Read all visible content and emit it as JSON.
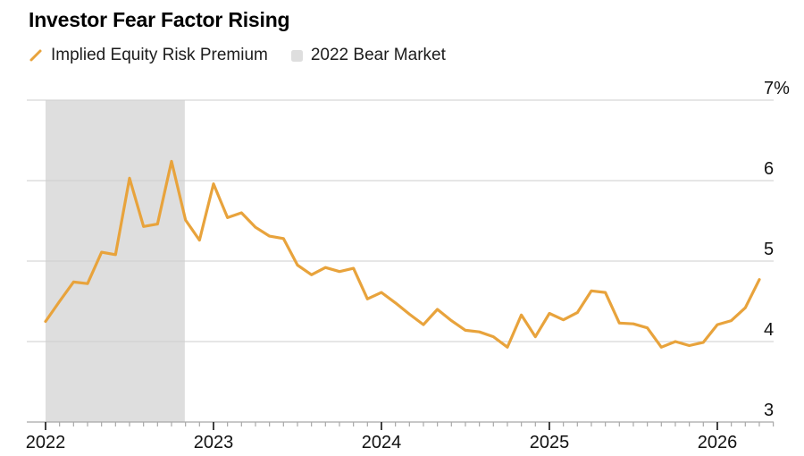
{
  "header": {
    "title": "Investor Fear Factor Rising"
  },
  "legend": {
    "items": [
      {
        "label": "Implied Equity Risk Premium",
        "swatch": "line-slash-icon",
        "color": "#E8A33C"
      },
      {
        "label": "2022 Bear Market",
        "swatch": "band-square-icon",
        "color": "#DEDEDE"
      }
    ]
  },
  "chart_data": {
    "type": "line",
    "title": "Investor Fear Factor Rising",
    "unit": "%",
    "x_start": "2022-01",
    "frequency": "monthly",
    "x_tick_labels": [
      "2022",
      "2023",
      "2024",
      "2025",
      "2026"
    ],
    "x_tick_month_indices": [
      0,
      12,
      24,
      36,
      48
    ],
    "y_ticks": [
      {
        "value": 7,
        "label": "7%"
      },
      {
        "value": 6,
        "label": "6"
      },
      {
        "value": 5,
        "label": "5"
      },
      {
        "value": 4,
        "label": "4"
      },
      {
        "value": 3,
        "label": "3"
      }
    ],
    "ylim": [
      3,
      7
    ],
    "grid": "horizontal",
    "legend_position": "top-left",
    "series": [
      {
        "name": "Implied Equity Risk Premium",
        "color": "#E8A33C",
        "values": [
          4.25,
          4.5,
          4.74,
          4.72,
          5.11,
          5.08,
          6.03,
          5.43,
          5.46,
          6.24,
          5.51,
          5.26,
          5.96,
          5.54,
          5.6,
          5.42,
          5.31,
          5.28,
          4.95,
          4.83,
          4.92,
          4.87,
          4.91,
          4.53,
          4.61,
          4.48,
          4.34,
          4.21,
          4.4,
          4.26,
          4.14,
          4.12,
          4.06,
          3.93,
          4.33,
          4.06,
          4.35,
          4.27,
          4.36,
          4.63,
          4.61,
          4.23,
          4.22,
          4.17,
          3.93,
          4.0,
          3.95,
          3.99,
          4.21,
          4.26,
          4.42,
          4.77
        ]
      }
    ],
    "band": {
      "label": "2022 Bear Market",
      "color": "#DEDEDE",
      "start_month_index": 0,
      "end_month_index": 9.95
    }
  },
  "colors": {
    "accent_orange": "#E8A33C",
    "band_gray": "#DEDEDE",
    "gridline": "#CDCDCD",
    "axis": "#A8A8A8",
    "major_tick": "#2B2B2B",
    "label_text": "#111111"
  }
}
